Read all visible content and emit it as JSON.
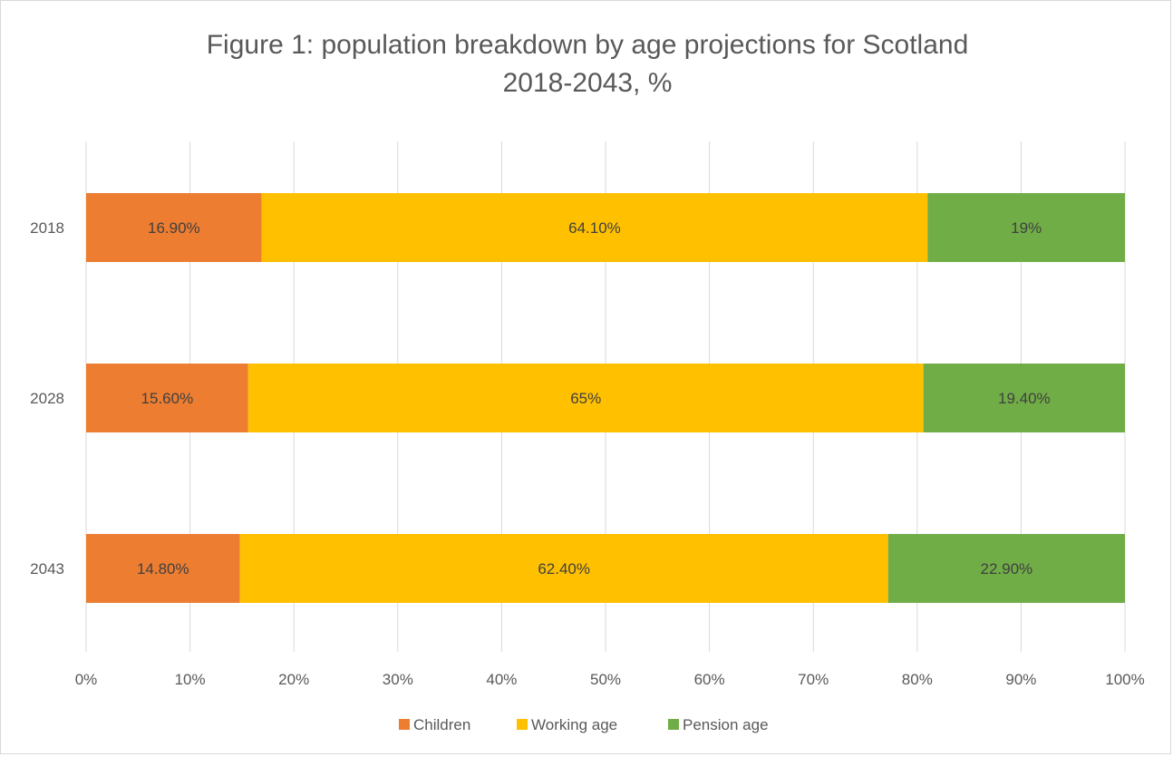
{
  "chart_data": {
    "type": "bar",
    "orientation": "horizontal",
    "stacked": "percent",
    "title_lines": [
      "Figure 1: population breakdown by age projections for Scotland",
      "2018-2043, %"
    ],
    "categories": [
      "2018",
      "2028",
      "2043"
    ],
    "series": [
      {
        "name": "Children",
        "color": "#ED7D31",
        "values": [
          16.9,
          15.6,
          14.8
        ],
        "labels": [
          "16.90%",
          "15.60%",
          "14.80%"
        ]
      },
      {
        "name": "Working age",
        "color": "#FFC000",
        "values": [
          64.1,
          65,
          62.4
        ],
        "labels": [
          "64.10%",
          "65%",
          "62.40%"
        ]
      },
      {
        "name": "Pension age",
        "color": "#70AD47",
        "values": [
          19,
          19.4,
          22.9
        ],
        "labels": [
          "19%",
          "19.40%",
          "22.90%"
        ]
      }
    ],
    "x_ticks": [
      "0%",
      "10%",
      "20%",
      "30%",
      "40%",
      "50%",
      "60%",
      "70%",
      "80%",
      "90%",
      "100%"
    ],
    "xlim": [
      0,
      100
    ],
    "grid": "vertical",
    "legend_position": "bottom",
    "xlabel": "",
    "ylabel": ""
  }
}
